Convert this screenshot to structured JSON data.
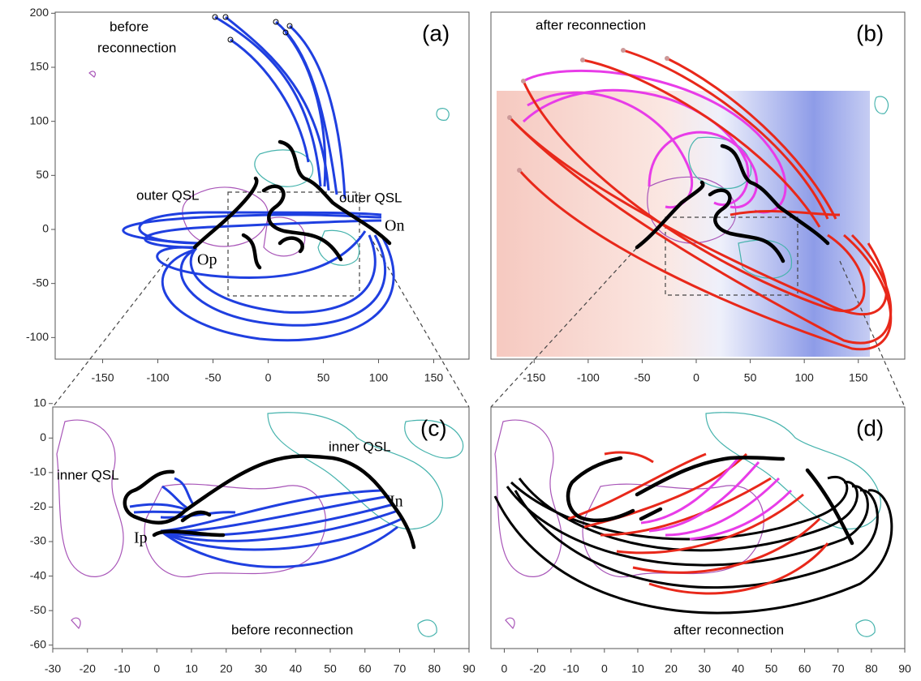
{
  "panels": [
    {
      "label": "(a)",
      "annotations": [
        "before",
        "reconnection",
        "outer QSL",
        "outer QSL",
        "On",
        "Op"
      ],
      "xlim": [
        -193,
        182
      ],
      "ylim": [
        -120,
        201
      ],
      "xticks": [
        -150,
        -100,
        -50,
        0,
        50,
        100,
        150
      ],
      "yticks": [
        -100,
        -50,
        0,
        50,
        100,
        150,
        200
      ]
    },
    {
      "label": "(b)",
      "annotations": [
        "after reconnection"
      ],
      "xlim": [
        -190,
        193
      ],
      "ylim": [
        -120,
        201
      ],
      "xticks": [
        -150,
        -100,
        -50,
        0,
        50,
        100,
        150
      ]
    },
    {
      "label": "(c)",
      "annotations": [
        "inner QSL",
        "inner QSL",
        "In",
        "Ip",
        "before reconnection"
      ],
      "xlim": [
        -30,
        90
      ],
      "ylim": [
        -61,
        9
      ],
      "xticks": [
        -30,
        -20,
        -10,
        0,
        10,
        20,
        30,
        40,
        50,
        60,
        70,
        80,
        90
      ],
      "yticks": [
        10,
        0,
        -10,
        -20,
        -30,
        -40,
        -50,
        -60
      ]
    },
    {
      "label": "(d)",
      "annotations": [
        "after reconnection"
      ],
      "xlim": [
        -34,
        90
      ],
      "xticks": [
        {
          "value": -30,
          "label": "0"
        },
        -20,
        -10,
        0,
        10,
        20,
        30,
        40,
        50,
        60,
        70,
        80,
        90
      ]
    }
  ]
}
